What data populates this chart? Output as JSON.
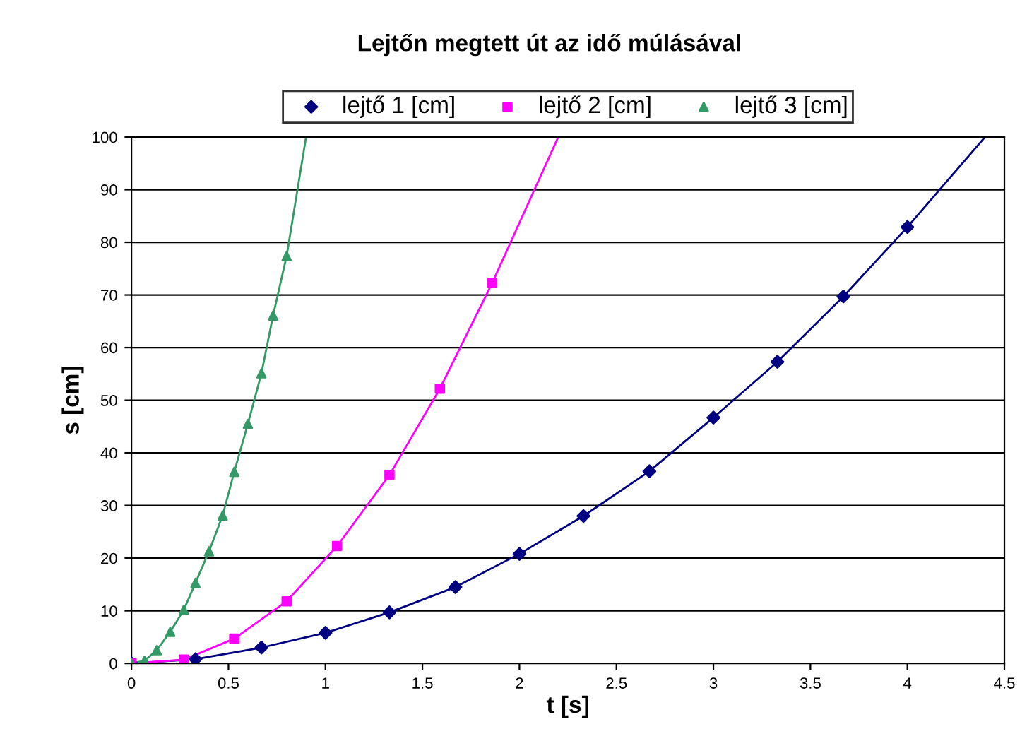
{
  "chart_data": {
    "type": "scatter",
    "title": "Lejtőn megtett út az idő múlásával",
    "xlabel": "t [s]",
    "ylabel": "s [cm]",
    "xlim": [
      0,
      4.5
    ],
    "ylim": [
      0,
      100
    ],
    "xticks": [
      0,
      0.5,
      1,
      1.5,
      2,
      2.5,
      3,
      3.5,
      4,
      4.5
    ],
    "yticks": [
      0,
      10,
      20,
      30,
      40,
      50,
      60,
      70,
      80,
      90,
      100
    ],
    "grid": "y",
    "legend": "top",
    "series": [
      {
        "type": "line",
        "marker": "none",
        "color": "#000080",
        "x": [
          0,
          0.33,
          0.67,
          1,
          1.33,
          1.67,
          2,
          2.33,
          2.67,
          3,
          3.33,
          3.67,
          4,
          4.4
        ],
        "values": [
          0,
          0.8,
          3,
          5.8,
          9.7,
          14.5,
          20.8,
          28,
          36.5,
          46.7,
          57.3,
          69.7,
          82.9,
          100
        ]
      },
      {
        "type": "line",
        "marker": "none",
        "color": "#ff00ff",
        "x": [
          0,
          0.27,
          0.53,
          0.8,
          1.06,
          1.33,
          1.59,
          1.86,
          2.2
        ],
        "values": [
          0,
          0.7,
          4.7,
          11.8,
          22.3,
          35.8,
          52.2,
          72.3,
          100
        ]
      },
      {
        "type": "line",
        "marker": "none",
        "color": "#339966",
        "x": [
          0,
          0.067,
          0.13,
          0.2,
          0.27,
          0.33,
          0.4,
          0.47,
          0.53,
          0.6,
          0.67,
          0.73,
          0.8,
          0.9
        ],
        "values": [
          0,
          0.5,
          2.5,
          6,
          10.2,
          15.3,
          21.3,
          28.1,
          36.4,
          45.5,
          55.1,
          66.1,
          77.4,
          100
        ]
      },
      {
        "name": "lejtő 1 [cm]",
        "marker": "diamond",
        "color": "#000080",
        "x": [
          0,
          0.33,
          0.67,
          1,
          1.33,
          1.67,
          2,
          2.33,
          2.67,
          3,
          3.33,
          3.67,
          4
        ],
        "values": [
          0,
          0.8,
          3,
          5.8,
          9.7,
          14.5,
          20.8,
          28,
          36.5,
          46.7,
          57.3,
          69.7,
          82.9
        ]
      },
      {
        "name": "lejtő 2 [cm]",
        "marker": "square",
        "color": "#ff00ff",
        "x": [
          0,
          0.27,
          0.53,
          0.8,
          1.06,
          1.33,
          1.59,
          1.86
        ],
        "values": [
          0,
          0.7,
          4.7,
          11.8,
          22.3,
          35.8,
          52.2,
          72.3
        ]
      },
      {
        "name": "lejtő 3 [cm]",
        "marker": "triangle",
        "color": "#339966",
        "x": [
          0,
          0.067,
          0.13,
          0.2,
          0.27,
          0.33,
          0.4,
          0.47,
          0.53,
          0.6,
          0.67,
          0.73,
          0.8
        ],
        "values": [
          0,
          0.5,
          2.5,
          6,
          10.2,
          15.3,
          21.3,
          28.1,
          36.4,
          45.5,
          55.1,
          66.1,
          77.4
        ]
      }
    ]
  }
}
